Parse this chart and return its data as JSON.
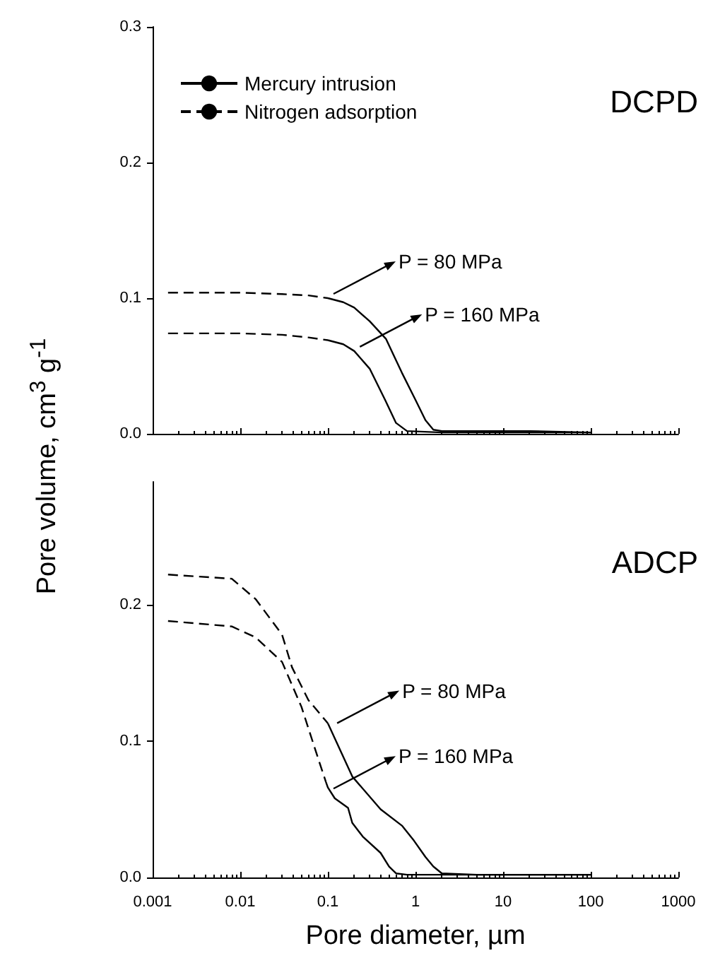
{
  "chart_data": [
    {
      "type": "line",
      "title": "DCPD",
      "ylabel": "Pore volume, cm$^{3}$ g$^{-1}$",
      "legend": "top left",
      "tick_labels": "y",
      "grid": false,
      "marker": "none",
      "xlim": [
        0.001,
        1000
      ],
      "xticks": [
        0.001,
        0.01,
        0.1,
        1,
        10,
        100,
        1000
      ],
      "log": "x",
      "ylim": [
        0,
        0.3
      ],
      "yticks": [
        {
          "value": 0,
          "label": "0.0"
        },
        {
          "value": 0.1,
          "label": "0.1"
        },
        {
          "value": 0.2,
          "label": "0.2"
        },
        {
          "value": 0.3,
          "label": "0.3"
        }
      ],
      "series": [
        {
          "name": "Mercury intrusion",
          "color": "#000000",
          "line_style": "solid",
          "x": [
            0.1,
            0.15,
            0.2,
            0.3,
            0.46,
            0.7,
            1.0,
            1.3,
            1.6,
            2,
            5,
            20,
            100
          ],
          "values": [
            0.1,
            0.097,
            0.093,
            0.083,
            0.07,
            0.045,
            0.025,
            0.01,
            0.003,
            0.002,
            0.002,
            0.002,
            0.001
          ]
        },
        {
          "name": "Nitrogen adsorption",
          "color": "#000000",
          "line_style": "dashed",
          "x": [
            0.0015,
            0.01,
            0.03,
            0.06,
            0.1
          ],
          "values": [
            0.104,
            0.104,
            0.103,
            0.102,
            0.1
          ]
        },
        {
          "color": "#000000",
          "line_style": "solid",
          "x": [
            0.1,
            0.15,
            0.2,
            0.3,
            0.45,
            0.6,
            0.8,
            2,
            10,
            100
          ],
          "values": [
            0.069,
            0.066,
            0.061,
            0.048,
            0.025,
            0.008,
            0.002,
            0.001,
            0.001,
            0.001
          ]
        },
        {
          "color": "#000000",
          "line_style": "dashed",
          "x": [
            0.0015,
            0.01,
            0.03,
            0.06,
            0.1
          ],
          "values": [
            0.074,
            0.074,
            0.073,
            0.071,
            0.069
          ]
        }
      ],
      "annotations": [
        {
          "text": "P = 80 MPa",
          "x": 0.1,
          "y": 0.1
        },
        {
          "text": "P = 160 MPa",
          "x": 0.2,
          "y": 0.061
        }
      ]
    },
    {
      "type": "line",
      "title": "ADCP",
      "xlabel": "Pore diameter, µm",
      "grid": false,
      "marker": "none",
      "xlim": [
        0.001,
        1000
      ],
      "xticks": [
        0.001,
        0.01,
        0.1,
        1,
        10,
        100,
        1000
      ],
      "log": "x",
      "ylim": [
        0,
        0.29
      ],
      "yticks": [
        {
          "value": 0,
          "label": "0.0"
        },
        {
          "value": 0.1,
          "label": "0.1"
        },
        {
          "value": 0.2,
          "label": "0.2"
        }
      ],
      "series": [
        {
          "color": "#000000",
          "line_style": "solid",
          "x": [
            0.1,
            0.19,
            0.4,
            0.7,
            0.96,
            1.3,
            1.6,
            2.0,
            5,
            20,
            100
          ],
          "values": [
            0.113,
            0.074,
            0.05,
            0.038,
            0.027,
            0.015,
            0.008,
            0.003,
            0.002,
            0.002,
            0.002
          ]
        },
        {
          "color": "#000000",
          "line_style": "dashed",
          "x": [
            0.0015,
            0.008,
            0.015,
            0.03,
            0.039,
            0.06,
            0.1
          ],
          "values": [
            0.222,
            0.219,
            0.204,
            0.178,
            0.154,
            0.13,
            0.113
          ]
        },
        {
          "color": "#000000",
          "line_style": "solid",
          "x": [
            0.095,
            0.1,
            0.12,
            0.17,
            0.19,
            0.25,
            0.4,
            0.5,
            0.6,
            0.8,
            5,
            100
          ],
          "values": [
            0.07,
            0.066,
            0.058,
            0.051,
            0.04,
            0.03,
            0.018,
            0.008,
            0.003,
            0.002,
            0.002,
            0.002
          ]
        },
        {
          "color": "#000000",
          "line_style": "dashed",
          "x": [
            0.0015,
            0.008,
            0.015,
            0.03,
            0.05,
            0.075,
            0.095
          ],
          "values": [
            0.188,
            0.184,
            0.176,
            0.158,
            0.125,
            0.09,
            0.07
          ]
        }
      ],
      "annotations": [
        {
          "text": "P = 80 MPa",
          "x": 0.11,
          "y": 0.11
        },
        {
          "text": "P = 160 MPa",
          "x": 0.1,
          "y": 0.062
        }
      ]
    }
  ]
}
